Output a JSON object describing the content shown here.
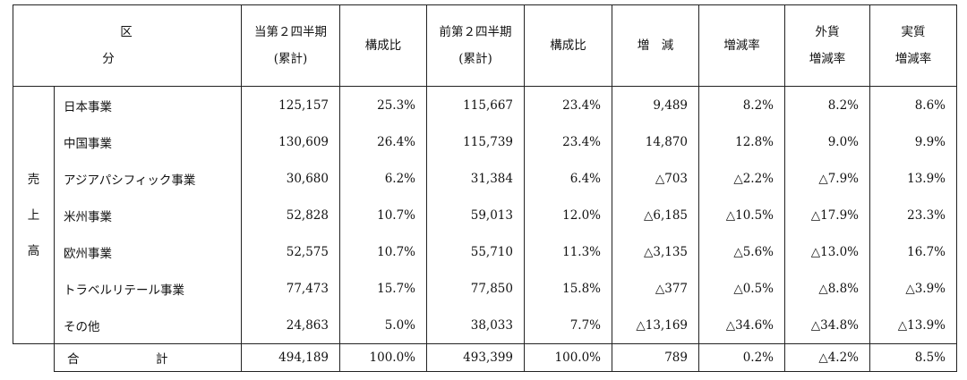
{
  "headers": {
    "category": "区　　分",
    "current_line1": "当第２四半期",
    "current_line2": "(累計)",
    "ratio1": "構成比",
    "previous_line1": "前第２四半期",
    "previous_line2": "(累計)",
    "ratio2": "構成比",
    "change": "増　減",
    "change_rate": "増減率",
    "fx_line1": "外貨",
    "fx_line2": "増減率",
    "real_line1": "実質",
    "real_line2": "増減率"
  },
  "group_label": [
    "売",
    "上",
    "高"
  ],
  "rows": [
    {
      "name": "日本事業",
      "current": "125,157",
      "ratio1": "25.3%",
      "previous": "115,667",
      "ratio2": "23.4%",
      "change": "9,489",
      "change_rate": "8.2%",
      "fx_rate": "8.2%",
      "real_rate": "8.6%"
    },
    {
      "name": "中国事業",
      "current": "130,609",
      "ratio1": "26.4%",
      "previous": "115,739",
      "ratio2": "23.4%",
      "change": "14,870",
      "change_rate": "12.8%",
      "fx_rate": "9.0%",
      "real_rate": "9.9%"
    },
    {
      "name": "アジアパシフィック事業",
      "current": "30,680",
      "ratio1": "6.2%",
      "previous": "31,384",
      "ratio2": "6.4%",
      "change": "△703",
      "change_rate": "△2.2%",
      "fx_rate": "△7.9%",
      "real_rate": "13.9%"
    },
    {
      "name": "米州事業",
      "current": "52,828",
      "ratio1": "10.7%",
      "previous": "59,013",
      "ratio2": "12.0%",
      "change": "△6,185",
      "change_rate": "△10.5%",
      "fx_rate": "△17.9%",
      "real_rate": "23.3%"
    },
    {
      "name": "欧州事業",
      "current": "52,575",
      "ratio1": "10.7%",
      "previous": "55,710",
      "ratio2": "11.3%",
      "change": "△3,135",
      "change_rate": "△5.6%",
      "fx_rate": "△13.0%",
      "real_rate": "16.7%"
    },
    {
      "name": "トラベルリテール事業",
      "current": "77,473",
      "ratio1": "15.7%",
      "previous": "77,850",
      "ratio2": "15.8%",
      "change": "△377",
      "change_rate": "△0.5%",
      "fx_rate": "△8.8%",
      "real_rate": "△3.9%"
    },
    {
      "name": "その他",
      "current": "24,863",
      "ratio1": "5.0%",
      "previous": "38,033",
      "ratio2": "7.7%",
      "change": "△13,169",
      "change_rate": "△34.6%",
      "fx_rate": "△34.8%",
      "real_rate": "△13.9%"
    }
  ],
  "total": {
    "name": "合　計",
    "current": "494,189",
    "ratio1": "100.0%",
    "previous": "493,399",
    "ratio2": "100.0%",
    "change": "789",
    "change_rate": "0.2%",
    "fx_rate": "△4.2%",
    "real_rate": "8.5%"
  }
}
